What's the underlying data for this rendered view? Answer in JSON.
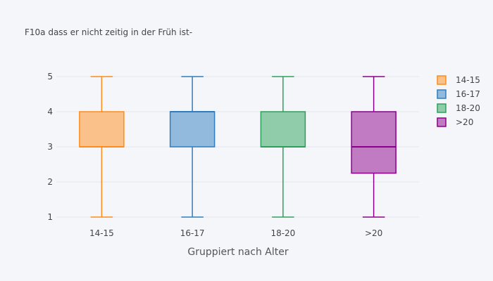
{
  "chart_data": {
    "type": "box",
    "title": "F10a dass er nicht zeitig in der Früh ist-",
    "xlabel": "Gruppiert nach Alter",
    "ylabel": "",
    "categories": [
      "14-15",
      "16-17",
      "18-20",
      ">20"
    ],
    "ylim": [
      0.82,
      5.18
    ],
    "yticks": [
      1,
      2,
      3,
      4,
      5
    ],
    "grid": true,
    "legend_position": "top-right",
    "series": [
      {
        "name": "14-15",
        "category": "14-15",
        "min": 1,
        "q1": 3,
        "median": 3,
        "q3": 4,
        "max": 5,
        "color": "#ff8c1a"
      },
      {
        "name": "16-17",
        "category": "16-17",
        "min": 1,
        "q1": 3,
        "median": 4,
        "q3": 4,
        "max": 5,
        "color": "#2f7dc0"
      },
      {
        "name": "18-20",
        "category": "18-20",
        "min": 1,
        "q1": 3,
        "median": 3,
        "q3": 4,
        "max": 5,
        "color": "#2ca05a"
      },
      {
        "name": ">20",
        "category": ">20",
        "min": 1,
        "q1": 2.25,
        "median": 3,
        "q3": 4,
        "max": 5,
        "color": "#8b008b"
      }
    ]
  }
}
